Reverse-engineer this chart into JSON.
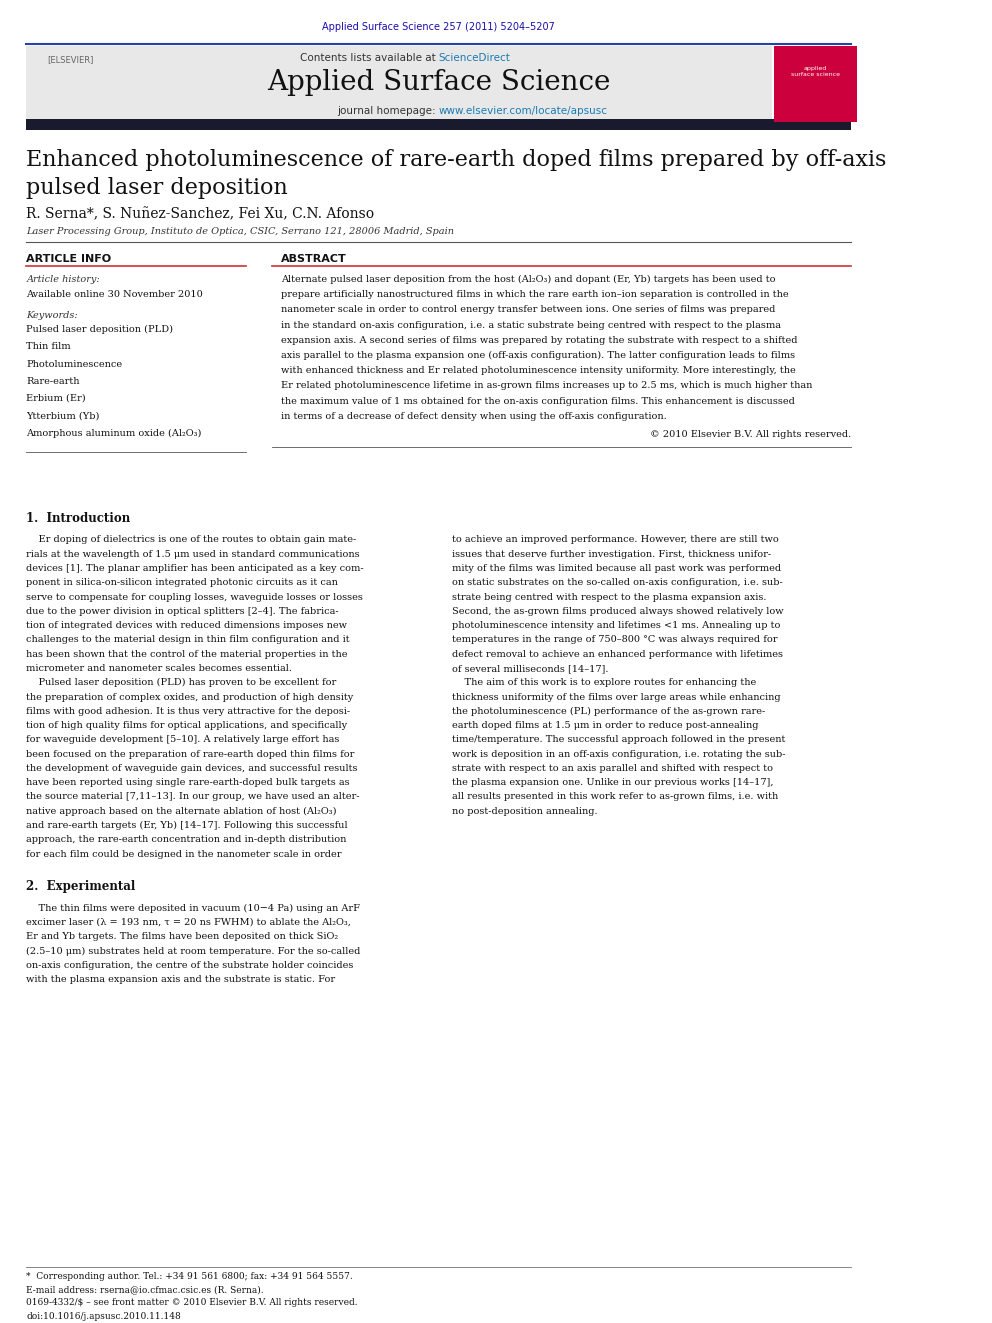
{
  "page_width": 9.92,
  "page_height": 13.23,
  "bg_color": "#ffffff",
  "journal_ref": "Applied Surface Science 257 (2011) 5204–5207",
  "journal_ref_color": "#1a0dab",
  "contents_line": "Contents lists available at ScienceDirect",
  "sciencedirect_color": "#1a7bb3",
  "journal_name": "Applied Surface Science",
  "journal_url": "journal homepage: www.elsevier.com/locate/apsusc",
  "journal_url_color": "#1a7bb3",
  "header_bg": "#e8e8e8",
  "dark_bar_color": "#1a1a2e",
  "article_title": "Enhanced photoluminescence of rare-earth doped films prepared by off-axis\npulsed laser deposition",
  "authors": "R. Serna*, S. Nuñez-Sanchez, Fei Xu, C.N. Afonso",
  "affiliation": "Laser Processing Group, Instituto de Optica, CSIC, Serrano 121, 28006 Madrid, Spain",
  "article_info_header": "ARTICLE INFO",
  "abstract_header": "ABSTRACT",
  "article_history_label": "Article history:",
  "available_online": "Available online 30 November 2010",
  "keywords_label": "Keywords:",
  "keywords": [
    "Pulsed laser deposition (PLD)",
    "Thin film",
    "Photoluminescence",
    "Rare-earth",
    "Erbium (Er)",
    "Ytterbium (Yb)",
    "Amorphous aluminum oxide (Al₂O₃)"
  ],
  "abstract_text": "Alternate pulsed laser deposition from the host (Al₂O₃) and dopant (Er, Yb) targets has been used to prepare artificially nanostructured films in which the rare earth ion–ion separation is controlled in the nanometer scale in order to control energy transfer between ions. One series of films was prepared in the standard on-axis configuration, i.e. a static substrate being centred with respect to the plasma expansion axis. A second series of films was prepared by rotating the substrate with respect to a shifted axis parallel to the plasma expansion one (off-axis configuration). The latter configuration leads to films with enhanced thickness and Er related photoluminescence intensity uniformity. More interestingly, the Er related photoluminescence lifetime in as-grown films increases up to 2.5 ms, which is much higher than the maximum value of 1 ms obtained for the on-axis configuration films. This enhancement is discussed in terms of a decrease of defect density when using the off-axis configuration.",
  "copyright_text": "© 2010 Elsevier B.V. All rights reserved.",
  "section1_title": "1.  Introduction",
  "section1_col1": "Er doping of dielectrics is one of the routes to obtain gain materials at the wavelength of 1.5 μm used in standard communications devices [1]. The planar amplifier has been anticipated as a key component in silica-on-silicon integrated photonic circuits as it can serve to compensate for coupling losses, waveguide losses or losses due to the power division in optical splitters [2–4]. The fabrication of integrated devices with reduced dimensions imposes new challenges to the material design in thin film configuration and it has been shown that the control of the material properties in the micrometer and nanometer scales becomes essential.\n    Pulsed laser deposition (PLD) has proven to be excellent for the preparation of complex oxides, and production of high density films with good adhesion. It is thus very attractive for the deposition of high quality films for optical applications, and specifically for waveguide development [5–10]. A relatively large effort has been focused on the preparation of rare-earth doped thin films for the development of waveguide gain devices, and successful results have been reported using single rare-earth-doped bulk targets as the source material [7,11–13]. In our group, we have used an alternative approach based on the alternate ablation of host (Al₂O₃) and rare-earth targets (Er, Yb) [14–17]. Following this successful approach, the rare-earth concentration and in-depth distribution for each film could be designed in the nanometer scale in order",
  "section1_col2": "to achieve an improved performance. However, there are still two issues that deserve further investigation. First, thickness uniformity of the films was limited because all past work was performed on static substrates on the so-called on-axis configuration, i.e. substrate being centred with respect to the plasma expansion axis. Second, the as-grown films produced always showed relatively low photoluminescence intensity and lifetimes <1 ms. Annealing up to temperatures in the range of 750–800 °C was always required for defect removal to achieve an enhanced performance with lifetimes of several milliseconds [14–17].\n    The aim of this work is to explore routes for enhancing the thickness uniformity of the films over large areas while enhancing the photoluminescence (PL) performance of the as-grown rare-earth doped films at 1.5 μm in order to reduce post-annealing time/temperature. The successful approach followed in the present work is deposition in an off-axis configuration, i.e. rotating the substrate with respect to an axis parallel and shifted with respect to the plasma expansion one. Unlike in our previous works [14–17], all results presented in this work refer to as-grown films, i.e. with no post-deposition annealing.",
  "section2_title": "2.  Experimental",
  "section2_text": "The thin films were deposited in vacuum (10−4 Pa) using an ArF excimer laser (λ = 193 nm, τ = 20 ns FWHM) to ablate the Al₂O₃, Er and Yb targets. The films have been deposited on thick SiO₂ (2.5–10 μm) substrates held at room temperature. For the so-called on-axis configuration, the centre of the substrate holder coincides with the plasma expansion axis and the substrate is static. For",
  "footer_text1": "*  Corresponding author. Tel.: +34 91 561 6800; fax: +34 91 564 5557.",
  "footer_text2": "E-mail address: rserna@io.cfmac.csic.es (R. Serna).",
  "footer_issn": "0169-4332/$ – see front matter © 2010 Elsevier B.V. All rights reserved.",
  "footer_doi": "doi:10.1016/j.apsusc.2010.11.148"
}
